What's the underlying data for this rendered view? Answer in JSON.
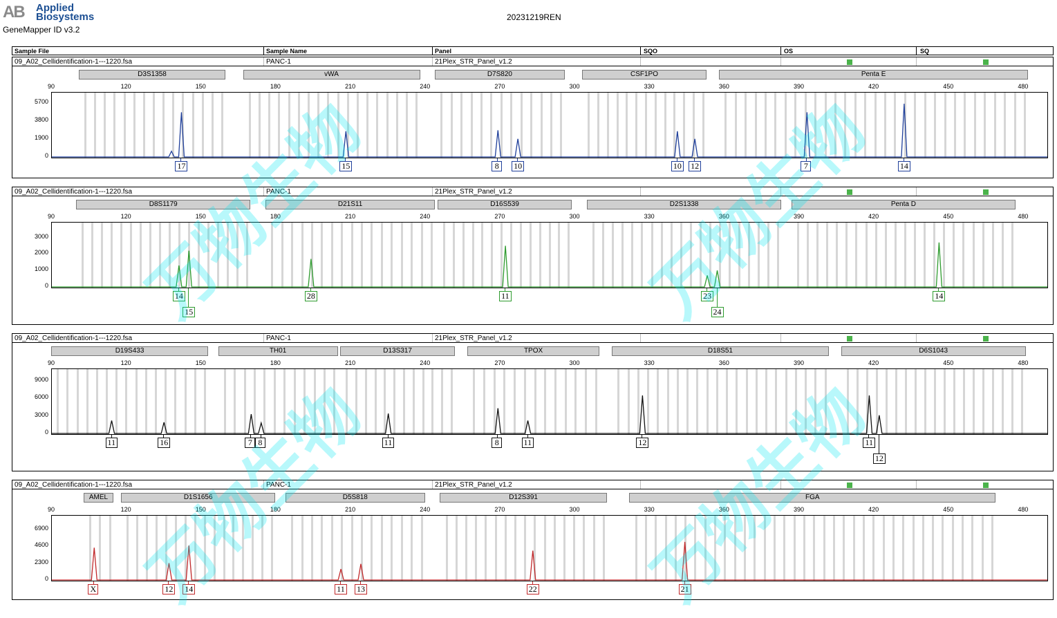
{
  "header": {
    "logo_mark": "AB",
    "logo_line1": "Applied",
    "logo_line2": "Biosystems",
    "app_version": "GeneMapper ID v3.2",
    "report_title": "20231219REN"
  },
  "columns": [
    "Sample File",
    "Sample Name",
    "Panel",
    "SQO",
    "OS",
    "SQ"
  ],
  "watermark": "万物生物",
  "x_axis": {
    "min": 90,
    "max": 490,
    "ticks": [
      90,
      120,
      150,
      180,
      210,
      240,
      270,
      300,
      330,
      360,
      390,
      420,
      450,
      480
    ]
  },
  "panels": [
    {
      "sample_file": "09_A02_Cellidentification-1---1220.fsa",
      "sample_name": "PANC-1",
      "panel": "21Plex_STR_Panel_v1.2",
      "color": "#1f3f9a",
      "y_ticks": [
        0,
        1900,
        3800,
        5700
      ],
      "y_max": 6400,
      "markers": [
        {
          "name": "D3S1358",
          "start": 101,
          "end": 160
        },
        {
          "name": "vWA",
          "start": 167,
          "end": 238
        },
        {
          "name": "D7S820",
          "start": 244,
          "end": 296
        },
        {
          "name": "CSF1PO",
          "start": 303,
          "end": 353
        },
        {
          "name": "Penta E",
          "start": 358,
          "end": 482
        }
      ],
      "peaks": [
        [
          138,
          600
        ],
        [
          142,
          4700
        ],
        [
          208,
          2700
        ],
        [
          269,
          2800
        ],
        [
          277,
          1900
        ],
        [
          341,
          2700
        ],
        [
          348,
          1900
        ],
        [
          393,
          4700
        ],
        [
          432,
          5600
        ]
      ],
      "calls": [
        {
          "allele": "17",
          "size": 142,
          "row": 0
        },
        {
          "allele": "15",
          "size": 208,
          "row": 0
        },
        {
          "allele": "8",
          "size": 269,
          "row": 0
        },
        {
          "allele": "10",
          "size": 277,
          "row": 0
        },
        {
          "allele": "10",
          "size": 341,
          "row": 0
        },
        {
          "allele": "12",
          "size": 348,
          "row": 0
        },
        {
          "allele": "7",
          "size": 393,
          "row": 0
        },
        {
          "allele": "14",
          "size": 432,
          "row": 0
        }
      ]
    },
    {
      "sample_file": "09_A02_Cellidentification-1---1220.fsa",
      "sample_name": "PANC-1",
      "panel": "21Plex_STR_Panel_v1.2",
      "color": "#2e9b2e",
      "y_ticks": [
        0,
        1000,
        2000,
        3000
      ],
      "y_max": 3700,
      "markers": [
        {
          "name": "D8S1179",
          "start": 100,
          "end": 170
        },
        {
          "name": "D21S11",
          "start": 176,
          "end": 244
        },
        {
          "name": "D16S539",
          "start": 245,
          "end": 299
        },
        {
          "name": "D2S1338",
          "start": 305,
          "end": 383
        },
        {
          "name": "Penta D",
          "start": 387,
          "end": 477
        }
      ],
      "peaks": [
        [
          141,
          1300
        ],
        [
          145,
          2200
        ],
        [
          194,
          1700
        ],
        [
          272,
          2500
        ],
        [
          353,
          700
        ],
        [
          357,
          1000
        ],
        [
          446,
          2700
        ]
      ],
      "calls": [
        {
          "allele": "14",
          "size": 141,
          "row": 0
        },
        {
          "allele": "15",
          "size": 145,
          "row": 1
        },
        {
          "allele": "28",
          "size": 194,
          "row": 0
        },
        {
          "allele": "11",
          "size": 272,
          "row": 0
        },
        {
          "allele": "23",
          "size": 353,
          "row": 0
        },
        {
          "allele": "24",
          "size": 357,
          "row": 1
        },
        {
          "allele": "14",
          "size": 446,
          "row": 0
        }
      ]
    },
    {
      "sample_file": "09_A02_Cellidentification-1---1220.fsa",
      "sample_name": "PANC-1",
      "panel": "21Plex_STR_Panel_v1.2",
      "color": "#111111",
      "y_ticks": [
        0,
        3000,
        6000,
        9000
      ],
      "y_max": 10400,
      "markers": [
        {
          "name": "D19S433",
          "start": 90,
          "end": 153
        },
        {
          "name": "TH01",
          "start": 157,
          "end": 205
        },
        {
          "name": "D13S317",
          "start": 206,
          "end": 252
        },
        {
          "name": "TPOX",
          "start": 257,
          "end": 310
        },
        {
          "name": "D18S51",
          "start": 315,
          "end": 402
        },
        {
          "name": "D6S1043",
          "start": 407,
          "end": 481
        }
      ],
      "peaks": [
        [
          114,
          2200
        ],
        [
          135,
          1900
        ],
        [
          170,
          3300
        ],
        [
          174,
          1800
        ],
        [
          225,
          3400
        ],
        [
          269,
          4300
        ],
        [
          281,
          2200
        ],
        [
          327,
          6500
        ],
        [
          418,
          6500
        ],
        [
          422,
          3100
        ]
      ],
      "calls": [
        {
          "allele": "11",
          "size": 114,
          "row": 0
        },
        {
          "allele": "16",
          "size": 135,
          "row": 0
        },
        {
          "allele": "7",
          "size": 170,
          "row": 0
        },
        {
          "allele": "8",
          "size": 174,
          "row": 0
        },
        {
          "allele": "11",
          "size": 225,
          "row": 0
        },
        {
          "allele": "8",
          "size": 269,
          "row": 0
        },
        {
          "allele": "11",
          "size": 281,
          "row": 0
        },
        {
          "allele": "12",
          "size": 327,
          "row": 0
        },
        {
          "allele": "11",
          "size": 418,
          "row": 0
        },
        {
          "allele": "12",
          "size": 422,
          "row": 1
        }
      ]
    },
    {
      "sample_file": "09_A02_Cellidentification-1---1220.fsa",
      "sample_name": "PANC-1",
      "panel": "21Plex_STR_Panel_v1.2",
      "color": "#c0282a",
      "y_ticks": [
        0,
        2300,
        4600,
        6900
      ],
      "y_max": 8300,
      "markers": [
        {
          "name": "AMEL",
          "start": 103,
          "end": 115
        },
        {
          "name": "D1S1656",
          "start": 118,
          "end": 180
        },
        {
          "name": "D5S818",
          "start": 184,
          "end": 240
        },
        {
          "name": "D12S391",
          "start": 246,
          "end": 313
        },
        {
          "name": "FGA",
          "start": 322,
          "end": 469
        }
      ],
      "peaks": [
        [
          107,
          4400
        ],
        [
          137,
          2300
        ],
        [
          145,
          4700
        ],
        [
          206,
          1500
        ],
        [
          214,
          2200
        ],
        [
          283,
          4000
        ],
        [
          344,
          5200
        ]
      ],
      "calls": [
        {
          "allele": "X",
          "size": 107,
          "row": 0
        },
        {
          "allele": "12",
          "size": 137,
          "row": 0
        },
        {
          "allele": "14",
          "size": 145,
          "row": 0
        },
        {
          "allele": "11",
          "size": 206,
          "row": 0
        },
        {
          "allele": "13",
          "size": 214,
          "row": 0
        },
        {
          "allele": "22",
          "size": 283,
          "row": 0
        },
        {
          "allele": "21",
          "size": 344,
          "row": 0
        }
      ]
    }
  ]
}
